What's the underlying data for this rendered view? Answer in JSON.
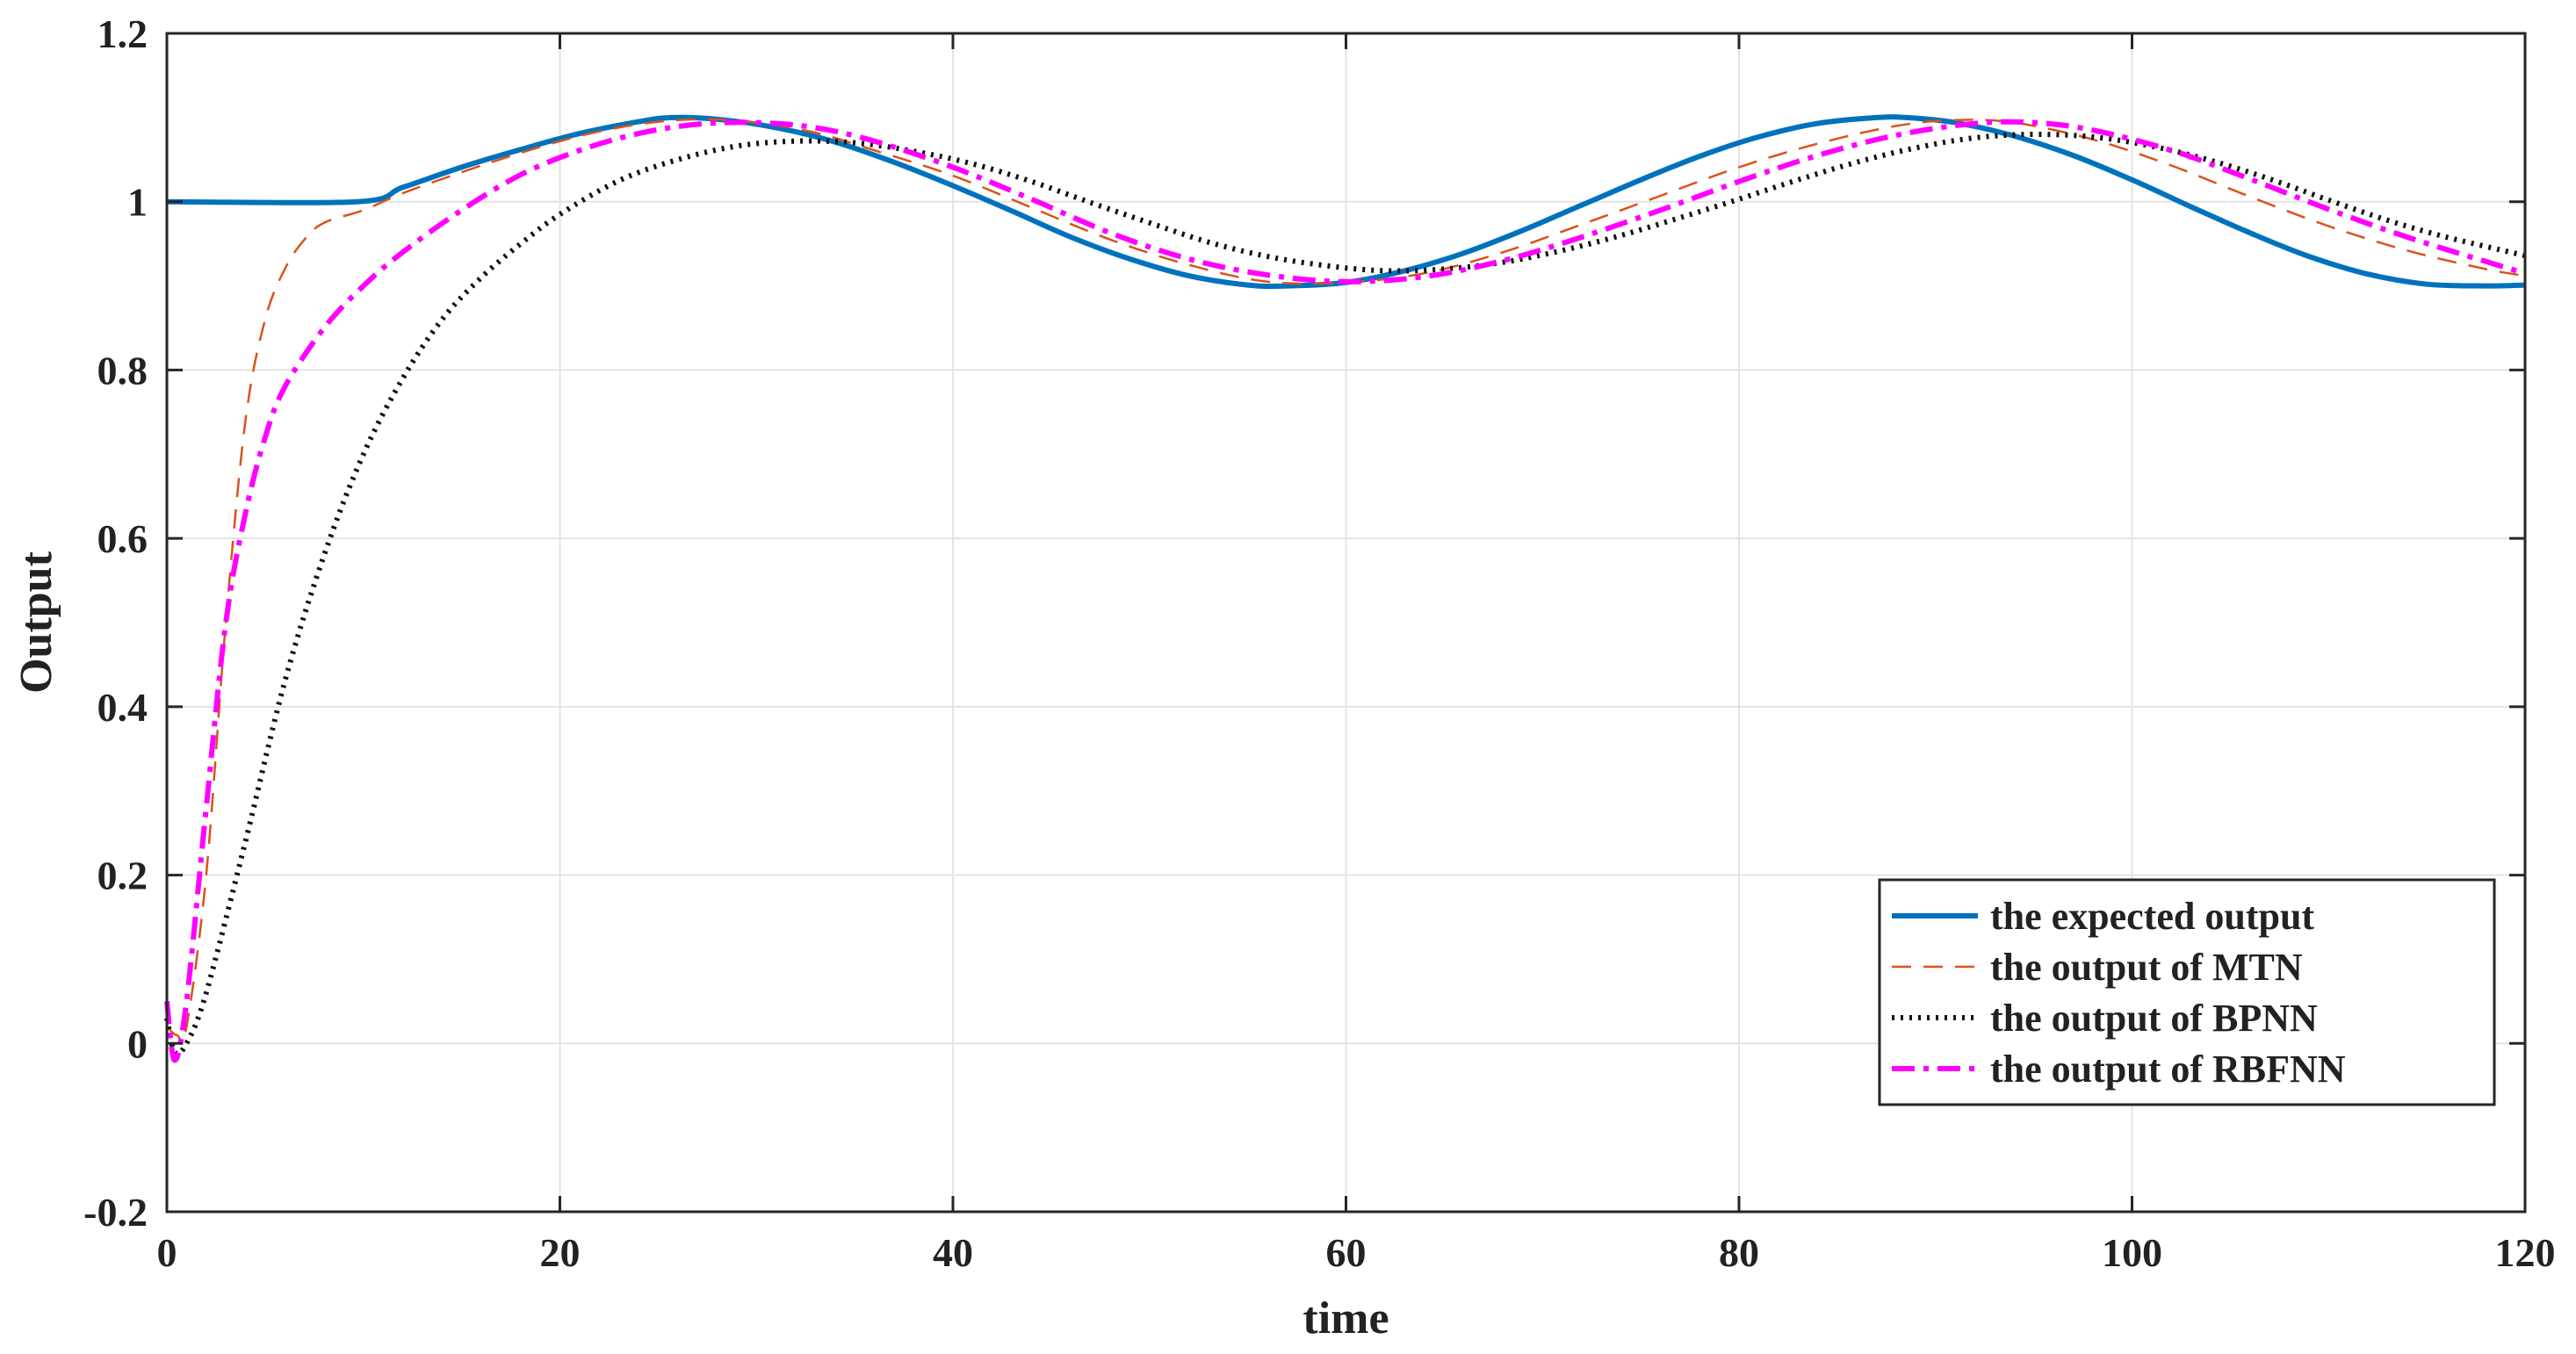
{
  "chart_data": {
    "type": "line",
    "title": "",
    "xlabel": "time",
    "ylabel": "Output",
    "xlim": [
      0,
      120
    ],
    "ylim": [
      -0.2,
      1.2
    ],
    "xticks": [
      0,
      20,
      40,
      60,
      80,
      100,
      120
    ],
    "xtick_labels": [
      "0",
      "20",
      "40",
      "60",
      "80",
      "100",
      "120"
    ],
    "yticks": [
      -0.2,
      0,
      0.2,
      0.4,
      0.6,
      0.8,
      1,
      1.2
    ],
    "ytick_labels": [
      "-0.2",
      "0",
      "0.2",
      "0.4",
      "0.6",
      "0.8",
      "1",
      "1.2"
    ],
    "grid": true,
    "legend_position": "bottom-right",
    "series": [
      {
        "name": "the expected output",
        "color": "#0072BD",
        "line_style": "solid",
        "x": [
          0,
          9.7,
          12,
          15,
          18,
          21,
          24,
          25.7,
          28,
          31,
          34,
          37,
          40,
          43,
          46,
          49,
          52,
          55,
          57,
          60,
          63,
          66,
          69,
          72,
          75,
          78,
          81,
          84,
          87,
          88.5,
          91,
          94,
          97,
          100,
          103,
          106,
          109,
          112,
          115,
          118,
          120
        ],
        "y": [
          1.0,
          1.0,
          1.017,
          1.041,
          1.062,
          1.081,
          1.095,
          1.1,
          1.098,
          1.088,
          1.071,
          1.047,
          1.019,
          0.989,
          0.958,
          0.932,
          0.912,
          0.901,
          0.9,
          0.904,
          0.918,
          0.939,
          0.966,
          0.996,
          1.026,
          1.054,
          1.077,
          1.093,
          1.1,
          1.1,
          1.094,
          1.078,
          1.055,
          1.026,
          0.994,
          0.963,
          0.935,
          0.914,
          0.902,
          0.9,
          0.901
        ]
      },
      {
        "name": "the output of MTN",
        "color": "#D95319",
        "line_style": "dashed",
        "x": [
          0,
          0.5,
          1,
          2,
          3,
          4,
          5,
          6,
          7,
          8,
          10,
          12,
          15,
          18,
          21,
          24,
          27,
          30,
          33,
          36,
          40,
          44,
          48,
          52,
          56,
          60,
          64,
          68,
          72,
          76,
          80,
          84,
          88,
          91,
          94,
          98,
          102,
          106,
          110,
          114,
          118,
          120
        ],
        "y": [
          0.02,
          0.01,
          0.02,
          0.2,
          0.5,
          0.74,
          0.86,
          0.92,
          0.955,
          0.975,
          0.99,
          1.01,
          1.035,
          1.058,
          1.078,
          1.092,
          1.098,
          1.094,
          1.082,
          1.061,
          1.031,
          0.993,
          0.955,
          0.925,
          0.905,
          0.904,
          0.915,
          0.94,
          0.973,
          1.007,
          1.041,
          1.069,
          1.09,
          1.097,
          1.094,
          1.074,
          1.043,
          1.006,
          0.971,
          0.942,
          0.92,
          0.912
        ]
      },
      {
        "name": "the output of BPNN",
        "color": "#111111",
        "line_style": "dotted",
        "x": [
          0,
          0.4,
          1,
          2,
          4,
          6,
          8,
          10,
          12,
          14,
          16,
          18,
          20,
          23,
          26,
          29,
          32,
          35,
          38,
          41,
          44,
          47,
          50,
          53,
          56,
          59,
          62,
          65,
          68,
          71,
          74,
          77,
          80,
          83,
          86,
          89,
          92,
          95,
          98,
          101,
          104,
          107,
          110,
          113,
          116,
          120
        ],
        "y": [
          0.03,
          -0.01,
          0.0,
          0.06,
          0.24,
          0.43,
          0.58,
          0.7,
          0.79,
          0.86,
          0.91,
          0.95,
          0.985,
          1.025,
          1.05,
          1.066,
          1.072,
          1.07,
          1.06,
          1.045,
          1.024,
          0.999,
          0.975,
          0.952,
          0.935,
          0.924,
          0.918,
          0.92,
          0.928,
          0.942,
          0.96,
          0.981,
          1.003,
          1.026,
          1.047,
          1.064,
          1.076,
          1.08,
          1.077,
          1.066,
          1.049,
          1.027,
          1.002,
          0.978,
          0.958,
          0.936
        ]
      },
      {
        "name": "the output of RBFNN",
        "color": "#FF00FF",
        "line_style": "dashdot",
        "x": [
          0,
          0.4,
          1,
          2,
          3,
          4,
          5,
          6,
          8,
          10,
          12,
          15,
          18,
          21,
          24,
          27,
          30,
          33,
          36,
          40,
          44,
          48,
          52,
          56,
          60,
          64,
          68,
          72,
          76,
          80,
          84,
          88,
          92,
          95,
          98,
          102,
          106,
          110,
          114,
          118,
          120
        ],
        "y": [
          0.05,
          -0.02,
          0.05,
          0.28,
          0.5,
          0.63,
          0.72,
          0.78,
          0.85,
          0.9,
          0.94,
          0.99,
          1.032,
          1.061,
          1.081,
          1.092,
          1.094,
          1.088,
          1.072,
          1.041,
          1.003,
          0.963,
          0.932,
          0.913,
          0.905,
          0.911,
          0.93,
          0.958,
          0.99,
          1.024,
          1.055,
          1.079,
          1.093,
          1.094,
          1.085,
          1.061,
          1.027,
          0.991,
          0.958,
          0.929,
          0.915
        ]
      }
    ]
  }
}
